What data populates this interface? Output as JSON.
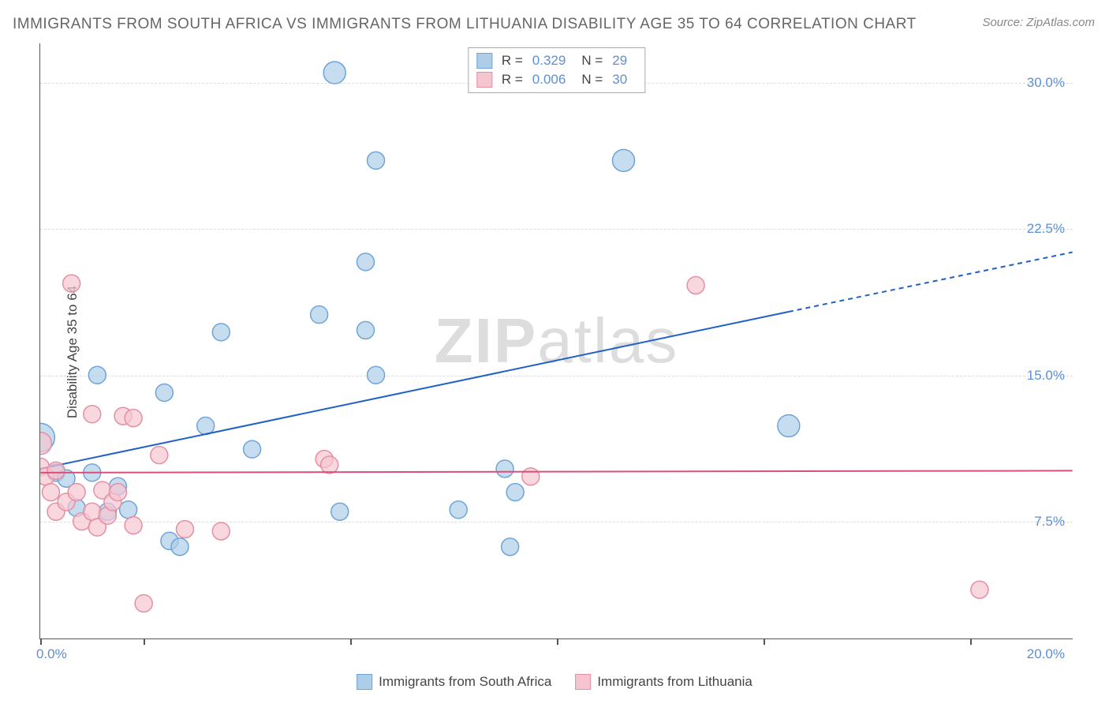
{
  "title": "IMMIGRANTS FROM SOUTH AFRICA VS IMMIGRANTS FROM LITHUANIA DISABILITY AGE 35 TO 64 CORRELATION CHART",
  "source": "Source: ZipAtlas.com",
  "ylabel": "Disability Age 35 to 64",
  "watermark_bold": "ZIP",
  "watermark_rest": "atlas",
  "chart": {
    "type": "scatter",
    "xlim": [
      0,
      20
    ],
    "ylim": [
      1.5,
      32
    ],
    "x_ticks_labeled": {
      "0": "0.0%",
      "20": "20.0%"
    },
    "x_tick_marks": [
      0,
      2,
      6,
      10,
      14,
      18
    ],
    "y_gridlines": [
      7.5,
      15.0,
      22.5,
      30.0
    ],
    "y_tick_labels": {
      "7.5": "7.5%",
      "15.0": "15.0%",
      "22.5": "22.5%",
      "30.0": "30.0%"
    },
    "background_color": "#ffffff",
    "grid_color": "#dddddd",
    "axis_color": "#555555",
    "tick_label_color": "#5b8fd6",
    "series": [
      {
        "name": "Immigrants from South Africa",
        "color_fill": "#aecde8",
        "color_stroke": "#6fa4d6",
        "marker_radius": 11,
        "r_value": "0.329",
        "n_value": "29",
        "trend_line": {
          "x1": 0,
          "y1": 10.2,
          "x2": 20,
          "y2": 21.3,
          "solid_until_x": 14.5,
          "color": "#2160c4",
          "width": 2
        },
        "points": [
          [
            0.0,
            11.8,
            18
          ],
          [
            0.3,
            10.0,
            11
          ],
          [
            0.5,
            9.7,
            11
          ],
          [
            0.7,
            8.2,
            11
          ],
          [
            1.0,
            10.0,
            11
          ],
          [
            1.1,
            15.0,
            11
          ],
          [
            1.3,
            8.0,
            11
          ],
          [
            1.5,
            9.3,
            11
          ],
          [
            1.7,
            8.1,
            11
          ],
          [
            2.4,
            14.1,
            11
          ],
          [
            2.5,
            6.5,
            11
          ],
          [
            2.7,
            6.2,
            11
          ],
          [
            3.2,
            12.4,
            11
          ],
          [
            3.5,
            17.2,
            11
          ],
          [
            4.1,
            11.2,
            11
          ],
          [
            5.4,
            18.1,
            11
          ],
          [
            5.7,
            30.5,
            14
          ],
          [
            5.8,
            8.0,
            11
          ],
          [
            6.3,
            20.8,
            11
          ],
          [
            6.3,
            17.3,
            11
          ],
          [
            6.5,
            26.0,
            11
          ],
          [
            6.5,
            15.0,
            11
          ],
          [
            8.1,
            8.1,
            11
          ],
          [
            9.0,
            10.2,
            11
          ],
          [
            9.1,
            6.2,
            11
          ],
          [
            9.2,
            9.0,
            11
          ],
          [
            11.3,
            26.0,
            14
          ],
          [
            14.5,
            12.4,
            14
          ]
        ]
      },
      {
        "name": "Immigrants from Lithuania",
        "color_fill": "#f5c6d1",
        "color_stroke": "#e48fa4",
        "marker_radius": 11,
        "r_value": "0.006",
        "n_value": "30",
        "trend_line": {
          "x1": 0,
          "y1": 10.0,
          "x2": 20,
          "y2": 10.1,
          "solid_until_x": 20,
          "color": "#d94f78",
          "width": 2
        },
        "points": [
          [
            0.0,
            11.5,
            14
          ],
          [
            0.0,
            10.3,
            11
          ],
          [
            0.1,
            9.8,
            11
          ],
          [
            0.2,
            9.0,
            11
          ],
          [
            0.3,
            10.1,
            11
          ],
          [
            0.3,
            8.0,
            11
          ],
          [
            0.5,
            8.5,
            11
          ],
          [
            0.6,
            19.7,
            11
          ],
          [
            0.7,
            9.0,
            11
          ],
          [
            0.8,
            7.5,
            11
          ],
          [
            1.0,
            13.0,
            11
          ],
          [
            1.0,
            8.0,
            11
          ],
          [
            1.1,
            7.2,
            11
          ],
          [
            1.2,
            9.1,
            11
          ],
          [
            1.3,
            7.8,
            11
          ],
          [
            1.4,
            8.5,
            11
          ],
          [
            1.5,
            9.0,
            11
          ],
          [
            1.6,
            12.9,
            11
          ],
          [
            1.8,
            7.3,
            11
          ],
          [
            1.8,
            12.8,
            11
          ],
          [
            2.0,
            3.3,
            11
          ],
          [
            2.3,
            10.9,
            11
          ],
          [
            2.8,
            7.1,
            11
          ],
          [
            3.5,
            7.0,
            11
          ],
          [
            5.5,
            10.7,
            11
          ],
          [
            5.6,
            10.4,
            11
          ],
          [
            9.5,
            9.8,
            11
          ],
          [
            12.7,
            19.6,
            11
          ],
          [
            18.2,
            4.0,
            11
          ]
        ]
      }
    ]
  },
  "legend_top": {
    "r_label": "R  =",
    "n_label": "N  ="
  },
  "legend_bottom": [
    {
      "label": "Immigrants from South Africa",
      "fill": "#aecde8",
      "stroke": "#6fa4d6"
    },
    {
      "label": "Immigrants from Lithuania",
      "fill": "#f5c6d1",
      "stroke": "#e48fa4"
    }
  ]
}
